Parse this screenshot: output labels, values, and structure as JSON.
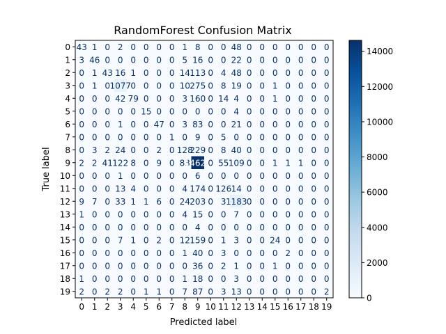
{
  "chart_data": {
    "type": "heatmap",
    "title": "RandomForest Confusion Matrix",
    "xlabel": "Predicted label",
    "ylabel": "True label",
    "x_categories": [
      "0",
      "1",
      "2",
      "3",
      "4",
      "5",
      "6",
      "7",
      "8",
      "9",
      "10",
      "11",
      "12",
      "13",
      "14",
      "15",
      "16",
      "17",
      "18",
      "19"
    ],
    "y_categories": [
      "0",
      "1",
      "2",
      "3",
      "4",
      "5",
      "6",
      "7",
      "8",
      "9",
      "10",
      "11",
      "12",
      "13",
      "14",
      "15",
      "16",
      "17",
      "18",
      "19"
    ],
    "matrix": [
      [
        43,
        1,
        0,
        2,
        0,
        0,
        0,
        0,
        1,
        8,
        0,
        0,
        48,
        0,
        0,
        0,
        0,
        0,
        0,
        0
      ],
      [
        3,
        46,
        0,
        0,
        0,
        0,
        0,
        0,
        5,
        16,
        0,
        0,
        22,
        0,
        0,
        0,
        0,
        0,
        0,
        0
      ],
      [
        0,
        1,
        43,
        16,
        1,
        0,
        0,
        0,
        14,
        113,
        0,
        4,
        48,
        0,
        0,
        0,
        0,
        0,
        0,
        0
      ],
      [
        0,
        1,
        0,
        1077,
        0,
        0,
        0,
        0,
        10,
        275,
        0,
        8,
        19,
        0,
        0,
        1,
        0,
        0,
        0,
        0
      ],
      [
        0,
        0,
        0,
        42,
        79,
        0,
        0,
        0,
        3,
        160,
        0,
        14,
        4,
        0,
        0,
        1,
        0,
        0,
        0,
        0
      ],
      [
        0,
        0,
        0,
        0,
        0,
        15,
        0,
        0,
        0,
        0,
        0,
        0,
        4,
        0,
        0,
        0,
        0,
        0,
        0,
        0
      ],
      [
        0,
        0,
        0,
        1,
        0,
        0,
        47,
        0,
        3,
        83,
        0,
        0,
        21,
        0,
        0,
        0,
        0,
        0,
        0,
        0
      ],
      [
        0,
        0,
        0,
        0,
        0,
        0,
        0,
        1,
        0,
        9,
        0,
        5,
        0,
        0,
        0,
        0,
        0,
        0,
        0,
        0
      ],
      [
        0,
        3,
        2,
        24,
        0,
        0,
        2,
        0,
        128,
        229,
        0,
        8,
        40,
        0,
        0,
        0,
        0,
        0,
        0,
        0
      ],
      [
        2,
        2,
        41,
        122,
        8,
        0,
        9,
        0,
        83,
        14621,
        0,
        55,
        109,
        0,
        0,
        1,
        1,
        1,
        0,
        0
      ],
      [
        0,
        0,
        0,
        1,
        0,
        0,
        0,
        0,
        0,
        6,
        0,
        0,
        0,
        0,
        0,
        0,
        0,
        0,
        0,
        0
      ],
      [
        0,
        0,
        0,
        13,
        4,
        0,
        0,
        0,
        4,
        174,
        0,
        126,
        14,
        0,
        0,
        0,
        0,
        0,
        0,
        0
      ],
      [
        9,
        7,
        0,
        33,
        1,
        1,
        6,
        0,
        24,
        203,
        0,
        3,
        1183,
        0,
        0,
        0,
        0,
        0,
        0,
        0
      ],
      [
        1,
        0,
        0,
        0,
        0,
        0,
        0,
        0,
        4,
        15,
        0,
        0,
        7,
        0,
        0,
        0,
        0,
        0,
        0,
        0
      ],
      [
        0,
        0,
        0,
        0,
        0,
        0,
        0,
        0,
        0,
        4,
        0,
        0,
        0,
        0,
        0,
        0,
        0,
        0,
        0,
        0
      ],
      [
        0,
        0,
        0,
        7,
        1,
        0,
        2,
        0,
        12,
        159,
        0,
        1,
        3,
        0,
        0,
        24,
        0,
        0,
        0,
        0
      ],
      [
        0,
        0,
        0,
        0,
        0,
        0,
        0,
        0,
        1,
        40,
        0,
        3,
        0,
        0,
        0,
        0,
        2,
        0,
        0,
        0
      ],
      [
        0,
        0,
        0,
        0,
        0,
        0,
        0,
        0,
        0,
        36,
        0,
        2,
        1,
        0,
        0,
        1,
        0,
        0,
        0,
        0
      ],
      [
        1,
        0,
        0,
        0,
        0,
        0,
        0,
        0,
        1,
        18,
        0,
        0,
        3,
        0,
        0,
        0,
        0,
        0,
        0,
        0
      ],
      [
        2,
        0,
        2,
        2,
        0,
        1,
        1,
        0,
        7,
        87,
        0,
        3,
        13,
        0,
        0,
        0,
        0,
        0,
        0,
        2
      ]
    ],
    "colorbar": {
      "colormap": "Blues",
      "range": [
        0,
        14621
      ],
      "ticks": [
        "0",
        "2000",
        "4000",
        "6000",
        "8000",
        "10000",
        "12000",
        "14000"
      ]
    },
    "grid": false
  }
}
